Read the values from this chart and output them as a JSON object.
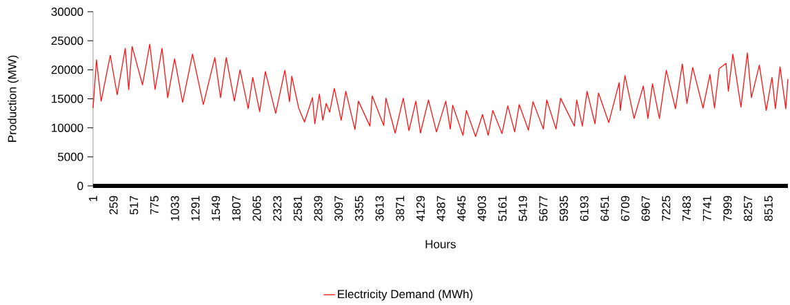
{
  "chart_data": {
    "type": "line",
    "xlabel": "Hours",
    "ylabel": "Production (MW)",
    "xlim": [
      1,
      8760
    ],
    "ylim": [
      0,
      30000
    ],
    "xticks": [
      1,
      259,
      517,
      775,
      1033,
      1291,
      1549,
      1807,
      2065,
      2323,
      2581,
      2839,
      3097,
      3355,
      3613,
      3871,
      4129,
      4387,
      4645,
      4903,
      5161,
      5419,
      5677,
      5935,
      6193,
      6451,
      6709,
      6967,
      7225,
      7483,
      7741,
      7999,
      8257,
      8515
    ],
    "yticks": [
      0,
      5000,
      10000,
      15000,
      20000,
      25000,
      30000
    ],
    "legend": "bottom",
    "x": [
      1,
      44,
      103,
      218,
      305,
      407,
      450,
      494,
      624,
      716,
      783,
      870,
      942,
      1029,
      1130,
      1255,
      1391,
      1536,
      1608,
      1680,
      1782,
      1854,
      1956,
      2014,
      2101,
      2173,
      2303,
      2419,
      2477,
      2506,
      2593,
      2666,
      2767,
      2796,
      2854,
      2897,
      2940,
      2984,
      3042,
      3129,
      3187,
      3302,
      3346,
      3491,
      3520,
      3665,
      3693,
      3809,
      3911,
      3983,
      4070,
      4128,
      4229,
      4330,
      4447,
      4504,
      4534,
      4664,
      4707,
      4823,
      4910,
      4982,
      5040,
      5156,
      5229,
      5316,
      5373,
      5489,
      5547,
      5677,
      5720,
      5837,
      5894,
      6068,
      6097,
      6169,
      6228,
      6328,
      6372,
      6502,
      6633,
      6647,
      6706,
      6821,
      6937,
      6995,
      7053,
      7140,
      7227,
      7342,
      7429,
      7487,
      7560,
      7690,
      7777,
      7835,
      7893,
      7980,
      8009,
      8066,
      8168,
      8249,
      8300,
      8400,
      8487,
      8559,
      8602,
      8661,
      8733,
      8760
    ],
    "series": [
      {
        "name": "Electricity Demand (MWh)",
        "color": "#ff1111",
        "values": [
          13400,
          21700,
          14600,
          22500,
          15700,
          23700,
          16600,
          24000,
          17400,
          24400,
          16600,
          23700,
          15200,
          21900,
          14400,
          22700,
          14000,
          22100,
          15200,
          22100,
          14600,
          20000,
          13300,
          18700,
          12800,
          19700,
          12500,
          19900,
          14500,
          18900,
          13400,
          11000,
          15200,
          10700,
          15800,
          11300,
          14200,
          12700,
          16800,
          11300,
          16300,
          9700,
          14600,
          10300,
          15500,
          10400,
          15100,
          9100,
          15100,
          9500,
          14600,
          9100,
          14800,
          9300,
          14600,
          9800,
          13900,
          8700,
          13000,
          8500,
          12300,
          8700,
          13000,
          9000,
          13800,
          9300,
          14000,
          9600,
          14500,
          9800,
          14800,
          9800,
          15100,
          10300,
          14800,
          10300,
          16300,
          10700,
          16000,
          10900,
          17800,
          13000,
          19000,
          11600,
          17200,
          11600,
          17600,
          11600,
          19900,
          13300,
          21000,
          14200,
          20400,
          13400,
          19200,
          13400,
          20200,
          21100,
          16300,
          22700,
          13600,
          22900,
          15200,
          20800,
          13000,
          18700,
          13300,
          20500,
          13300,
          18400
        ]
      }
    ]
  }
}
